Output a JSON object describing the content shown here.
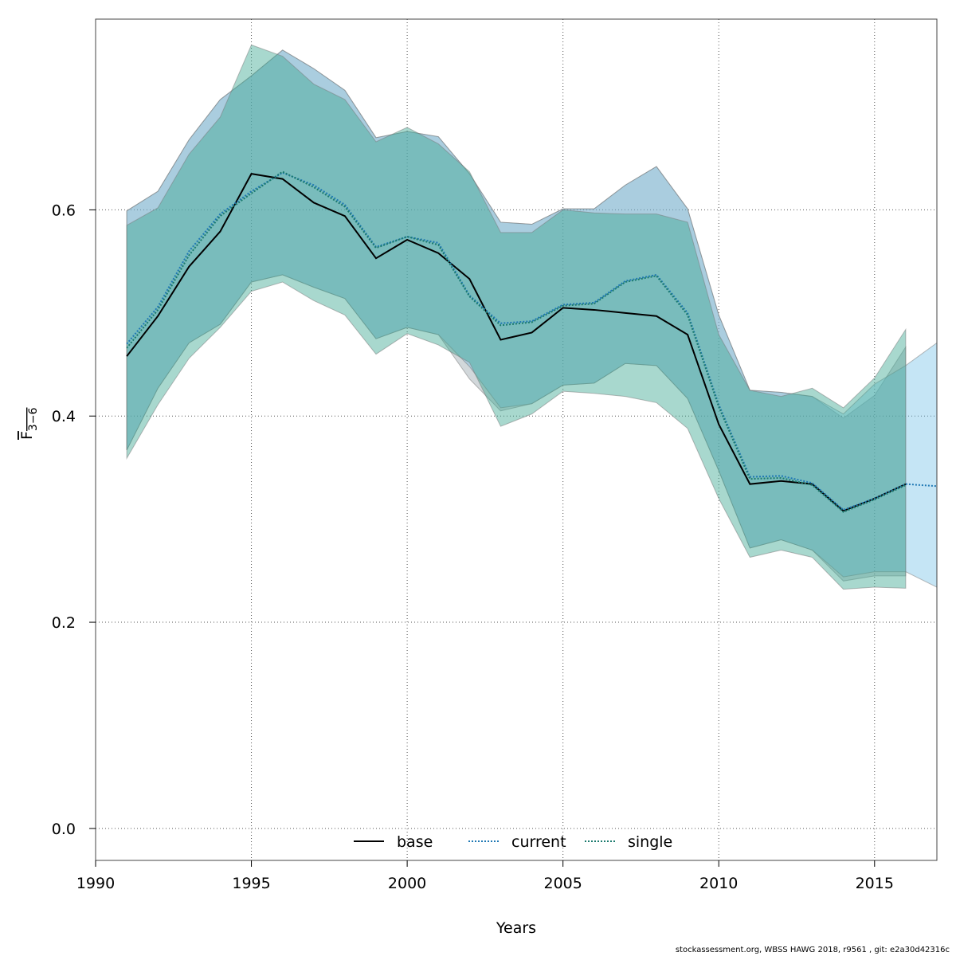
{
  "chart_data": {
    "type": "area",
    "title": "",
    "xlabel": "Years",
    "ylabel_main": "F",
    "ylabel_sub": "3−6",
    "xlim": [
      1990,
      2017
    ],
    "ylim": [
      -0.031,
      0.785
    ],
    "x_ticks": [
      1990,
      1995,
      2000,
      2005,
      2010,
      2015
    ],
    "x_tick_labels": [
      "1990",
      "1995",
      "2000",
      "2005",
      "2010",
      "2015"
    ],
    "y_ticks": [
      0.0,
      0.2,
      0.4,
      0.6
    ],
    "y_tick_labels": [
      "0.0",
      "0.2",
      "0.4",
      "0.6"
    ],
    "grid": true,
    "legend_position": "bottom-center",
    "series": [
      {
        "name": "base",
        "line_color": "#000000",
        "line_style": "solid",
        "fill_color": "#7f8f99",
        "x": [
          1991,
          1992,
          1993,
          1994,
          1995,
          1996,
          1997,
          1998,
          1999,
          2000,
          2001,
          2002,
          2003,
          2004,
          2005,
          2006,
          2007,
          2008,
          2009,
          2010,
          2011,
          2012,
          2013,
          2014,
          2015,
          2016
        ],
        "values": [
          0.458,
          0.497,
          0.545,
          0.579,
          0.635,
          0.63,
          0.607,
          0.594,
          0.553,
          0.571,
          0.558,
          0.533,
          0.474,
          0.481,
          0.505,
          0.503,
          0.5,
          0.497,
          0.479,
          0.392,
          0.334,
          0.337,
          0.334,
          0.308,
          0.32,
          0.334
        ],
        "upper": [
          0.599,
          0.618,
          0.668,
          0.707,
          0.73,
          0.755,
          0.737,
          0.716,
          0.67,
          0.676,
          0.671,
          0.635,
          0.588,
          0.586,
          0.601,
          0.601,
          0.624,
          0.642,
          0.601,
          0.498,
          0.425,
          0.423,
          0.419,
          0.398,
          0.42,
          0.467
        ],
        "lower": [
          0.367,
          0.427,
          0.471,
          0.489,
          0.53,
          0.537,
          0.525,
          0.514,
          0.475,
          0.486,
          0.479,
          0.436,
          0.405,
          0.412,
          0.43,
          0.432,
          0.451,
          0.449,
          0.417,
          0.347,
          0.272,
          0.28,
          0.27,
          0.24,
          0.245,
          0.245
        ]
      },
      {
        "name": "current",
        "line_color": "#1f78b4",
        "line_style": "dotted",
        "fill_color": "#6fbde6",
        "x": [
          1991,
          1992,
          1993,
          1994,
          1995,
          1996,
          1997,
          1998,
          1999,
          2000,
          2001,
          2002,
          2003,
          2004,
          2005,
          2006,
          2007,
          2008,
          2009,
          2010,
          2011,
          2012,
          2013,
          2014,
          2015,
          2016,
          2017
        ],
        "values": [
          0.47,
          0.506,
          0.56,
          0.596,
          0.618,
          0.636,
          0.624,
          0.605,
          0.564,
          0.574,
          0.568,
          0.517,
          0.49,
          0.492,
          0.508,
          0.51,
          0.531,
          0.537,
          0.5,
          0.411,
          0.341,
          0.342,
          0.335,
          0.309,
          0.32,
          0.334,
          0.332
        ],
        "upper": [
          0.599,
          0.618,
          0.668,
          0.707,
          0.73,
          0.755,
          0.737,
          0.716,
          0.67,
          0.676,
          0.671,
          0.635,
          0.588,
          0.586,
          0.601,
          0.601,
          0.624,
          0.642,
          0.601,
          0.498,
          0.425,
          0.423,
          0.419,
          0.402,
          0.431,
          0.449,
          0.471
        ],
        "lower": [
          0.367,
          0.427,
          0.471,
          0.489,
          0.53,
          0.537,
          0.525,
          0.514,
          0.475,
          0.486,
          0.479,
          0.448,
          0.408,
          0.412,
          0.43,
          0.432,
          0.451,
          0.449,
          0.417,
          0.347,
          0.272,
          0.28,
          0.27,
          0.244,
          0.249,
          0.249,
          0.234
        ]
      },
      {
        "name": "single",
        "line_color": "#1b7a6e",
        "line_style": "dotted",
        "fill_color": "#3fa893",
        "x": [
          1991,
          1992,
          1993,
          1994,
          1995,
          1996,
          1997,
          1998,
          1999,
          2000,
          2001,
          2002,
          2003,
          2004,
          2005,
          2006,
          2007,
          2008,
          2009,
          2010,
          2011,
          2012,
          2013,
          2014,
          2015,
          2016
        ],
        "values": [
          0.466,
          0.503,
          0.556,
          0.594,
          0.616,
          0.637,
          0.622,
          0.603,
          0.563,
          0.574,
          0.566,
          0.516,
          0.488,
          0.491,
          0.507,
          0.509,
          0.53,
          0.536,
          0.498,
          0.409,
          0.339,
          0.34,
          0.333,
          0.307,
          0.319,
          0.333
        ],
        "upper": [
          0.585,
          0.602,
          0.654,
          0.69,
          0.76,
          0.749,
          0.722,
          0.707,
          0.666,
          0.68,
          0.664,
          0.637,
          0.578,
          0.578,
          0.6,
          0.597,
          0.596,
          0.596,
          0.588,
          0.479,
          0.425,
          0.419,
          0.427,
          0.408,
          0.437,
          0.484
        ],
        "lower": [
          0.359,
          0.411,
          0.456,
          0.486,
          0.521,
          0.53,
          0.512,
          0.498,
          0.46,
          0.48,
          0.469,
          0.452,
          0.39,
          0.402,
          0.424,
          0.422,
          0.419,
          0.413,
          0.388,
          0.32,
          0.263,
          0.27,
          0.263,
          0.232,
          0.234,
          0.233
        ]
      }
    ]
  },
  "footer": "stockassessment.org, WBSS  HAWG  2018, r9561 , git: e2a30d42316c"
}
